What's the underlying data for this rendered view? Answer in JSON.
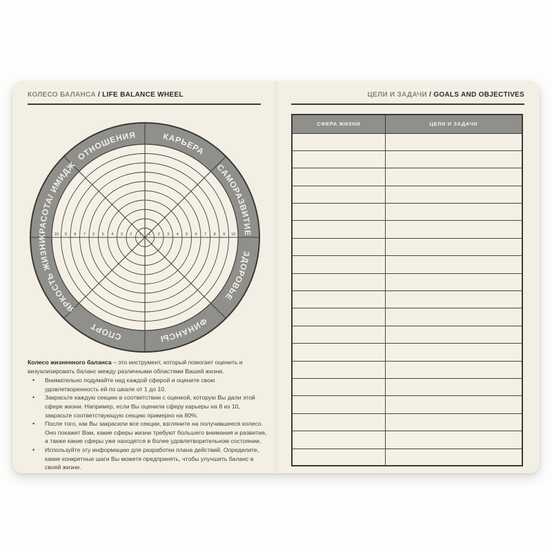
{
  "colors": {
    "page_bg": "#f3efe5",
    "ring_gray": "#8f8f8c",
    "line_dark": "#3c3933",
    "header_muted": "#8a8274",
    "label_text": "#f3efe6"
  },
  "left_page": {
    "header": {
      "title_ru": "КОЛЕСО БАЛАНСА",
      "separator": "/",
      "title_en": "LIFE BALANCE WHEEL"
    },
    "wheel": {
      "rings": 10,
      "scale": [
        "1",
        "2",
        "3",
        "4",
        "5",
        "6",
        "7",
        "8",
        "9",
        "10"
      ],
      "sectors": [
        "КАРЬЕРА",
        "САМОРАЗВИТИЕ",
        "ЗДОРОВЬЕ",
        "ФИНАНСЫ",
        "СПОРТ",
        "ЯРКОСТЬ ЖИЗНИ",
        "КРАСОТА/ ИМИДЖ",
        "ОТНОШЕНИЯ"
      ]
    },
    "description": {
      "lead_bold": "Колесо жизненного баланса",
      "lead_rest": " – это инструмент, который помогает оценить и визуализировать баланс между различными областями Вашей жизни.",
      "bullets": [
        "Внимательно подумайте над каждой сферой и оцените свою удовлетворенность ей по шкале от 1 до 10.",
        "Закрасьте каждую секцию в соответствии с оценкой, которую Вы дали этой сфере жизни. Например, если Вы оценили сферу карьеры на 8 из 10, закрасьте соответствующую секцию примерно на 80%.",
        "После того, как Вы закрасили все секции, взгляните на получившееся колесо. Оно покажет Вам, какие сферы жизни требуют большего внимания и развития, а также какие сферы уже находятся в более удовлетворительном состоянии.",
        "Используйте эту информацию для разработки плана действий. Определите, какие конкретные шаги Вы можете предпринять, чтобы улучшить баланс в своей жизни."
      ]
    }
  },
  "right_page": {
    "header": {
      "title_ru": "ЦЕЛИ И ЗАДАЧИ",
      "separator": "/",
      "title_en": "GOALS AND OBJECTIVES"
    },
    "table": {
      "columns": [
        "СФЕРА ЖИЗНИ",
        "ЦЕЛИ И ЗАДАЧИ"
      ],
      "row_count": 19
    }
  }
}
